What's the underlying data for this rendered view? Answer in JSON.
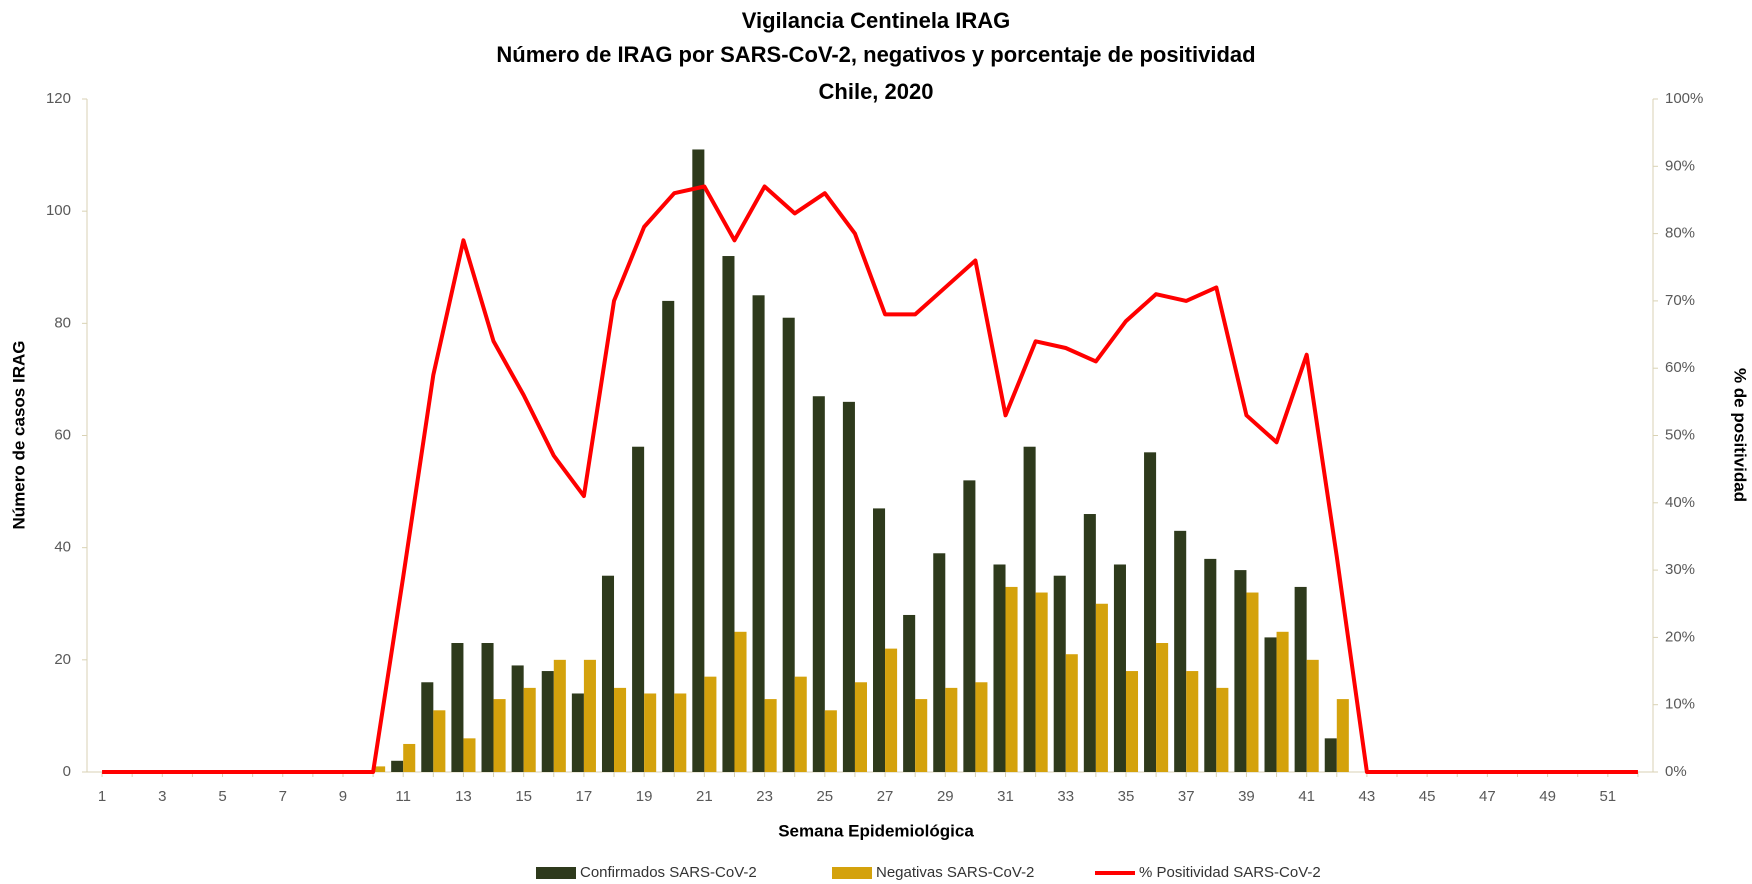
{
  "chart_data": {
    "type": "bar-line",
    "title": [
      "Vigilancia Centinela IRAG",
      "Número de IRAG por SARS-CoV-2,  negativos y porcentaje de positividad",
      "Chile, 2020"
    ],
    "x_label": "Semana Epidemiológica",
    "y_label": "Número de casos IRAG",
    "y2_label": "% de positividad",
    "categories": [
      "1",
      null,
      "3",
      null,
      "5",
      null,
      "7",
      null,
      "9",
      null,
      "11",
      null,
      "13",
      null,
      "15",
      null,
      "17",
      null,
      "19",
      null,
      "21",
      null,
      "23",
      null,
      "25",
      null,
      "27",
      null,
      "29",
      null,
      "31",
      null,
      "33",
      null,
      "35",
      null,
      "37",
      null,
      "39",
      null,
      "41",
      null,
      "43",
      null,
      "45",
      null,
      "47",
      null,
      "49",
      null,
      "51",
      null
    ],
    "ylim": [
      0,
      120
    ],
    "yticks": [
      0,
      20,
      40,
      60,
      80,
      100,
      120
    ],
    "y2lim": [
      0,
      100
    ],
    "y2ticks": [
      {
        "value": 0,
        "label": "0%"
      },
      {
        "value": 10,
        "label": "10%"
      },
      {
        "value": 20,
        "label": "20%"
      },
      {
        "value": 30,
        "label": "30%"
      },
      {
        "value": 40,
        "label": "40%"
      },
      {
        "value": 50,
        "label": "50%"
      },
      {
        "value": 60,
        "label": "60%"
      },
      {
        "value": 70,
        "label": "70%"
      },
      {
        "value": 80,
        "label": "80%"
      },
      {
        "value": 90,
        "label": "90%"
      },
      {
        "value": 100,
        "label": "100%"
      }
    ],
    "legend": "bottom",
    "series": [
      {
        "name": "Confirmados SARS-CoV-2",
        "type": "bar",
        "color": "#2e3a1c",
        "values": [
          0,
          0,
          0,
          0,
          0,
          0,
          0,
          0,
          0,
          0,
          2,
          16,
          23,
          23,
          19,
          18,
          14,
          35,
          58,
          84,
          111,
          92,
          85,
          81,
          67,
          66,
          47,
          28,
          39,
          52,
          37,
          58,
          35,
          46,
          37,
          57,
          43,
          38,
          36,
          24,
          33,
          6,
          0,
          0,
          0,
          0,
          0,
          0,
          0,
          0,
          0,
          0
        ]
      },
      {
        "name": "Negativas SARS-CoV-2",
        "type": "bar",
        "color": "#d4a20c",
        "values": [
          0,
          0,
          0,
          0,
          0,
          0,
          0,
          0,
          0,
          1,
          5,
          11,
          6,
          13,
          15,
          20,
          20,
          15,
          14,
          14,
          17,
          25,
          13,
          17,
          11,
          16,
          22,
          13,
          15,
          16,
          33,
          32,
          21,
          30,
          18,
          23,
          18,
          15,
          32,
          25,
          20,
          13,
          0,
          0,
          0,
          0,
          0,
          0,
          0,
          0,
          0,
          0
        ]
      },
      {
        "name": "% Positividad SARS-CoV-2",
        "type": "line",
        "axis": "y2",
        "color": "#ff0000",
        "values": [
          0,
          0,
          0,
          0,
          0,
          0,
          0,
          0,
          0,
          0,
          29,
          59,
          79,
          64,
          56,
          47,
          41,
          70,
          81,
          86,
          87,
          79,
          87,
          83,
          86,
          80,
          68,
          68,
          72,
          76,
          53,
          64,
          63,
          61,
          67,
          71,
          70,
          72,
          53,
          49,
          62,
          32,
          0,
          0,
          0,
          0,
          0,
          0,
          0,
          0,
          0,
          0
        ]
      }
    ]
  }
}
